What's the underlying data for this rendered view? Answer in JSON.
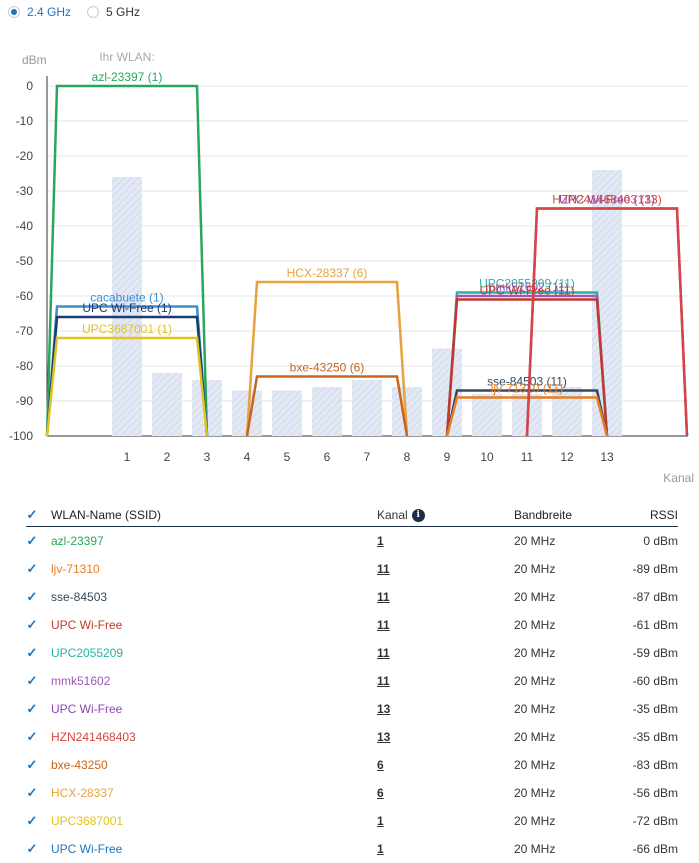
{
  "band_selector": {
    "options": [
      {
        "label": "2.4 GHz",
        "selected": true
      },
      {
        "label": "5 GHz",
        "selected": false
      }
    ]
  },
  "chart_data": {
    "type": "line",
    "title": "Ihr WLAN:",
    "ylabel": "dBm",
    "xlabel": "Kanal",
    "ylim": [
      -100,
      0
    ],
    "yticks": [
      0,
      -10,
      -20,
      -30,
      -40,
      -50,
      -60,
      -70,
      -80,
      -90,
      -100
    ],
    "xticks": [
      1,
      2,
      3,
      4,
      5,
      6,
      7,
      8,
      9,
      10,
      11,
      12,
      13
    ],
    "background_bars": [
      {
        "channel": 1,
        "value": -26
      },
      {
        "channel": 2,
        "value": -82
      },
      {
        "channel": 3,
        "value": -84
      },
      {
        "channel": 4,
        "value": -87
      },
      {
        "channel": 5,
        "value": -87
      },
      {
        "channel": 6,
        "value": -86
      },
      {
        "channel": 7,
        "value": -84
      },
      {
        "channel": 8,
        "value": -86
      },
      {
        "channel": 9,
        "value": -75
      },
      {
        "channel": 10,
        "value": -88
      },
      {
        "channel": 11,
        "value": -88
      },
      {
        "channel": 12,
        "value": -86
      },
      {
        "channel": 13,
        "value": -24
      }
    ],
    "series": [
      {
        "name": "azl-23397",
        "label": "azl-23397 (1)",
        "channel": 1,
        "rssi": 0,
        "color": "#2aa65a"
      },
      {
        "name": "cacabuete",
        "label": "cacabuete (1)",
        "channel": 1,
        "rssi": -63,
        "color": "#3a8fcf"
      },
      {
        "name": "UPC Wi-Free",
        "label": "UPC Wi-Free (1)",
        "channel": 1,
        "rssi": -66,
        "color": "#1c3c6e"
      },
      {
        "name": "UPC3687001",
        "label": "UPC3687001 (1)",
        "channel": 1,
        "rssi": -72,
        "color": "#e2c21c"
      },
      {
        "name": "HCX-28337",
        "label": "HCX-28337 (6)",
        "channel": 6,
        "rssi": -56,
        "color": "#e8a23a"
      },
      {
        "name": "bxe-43250",
        "label": "bxe-43250 (6)",
        "channel": 6,
        "rssi": -83,
        "color": "#c8641e"
      },
      {
        "name": "UPC2055209",
        "label": "UPC2055209 (11)",
        "channel": 11,
        "rssi": -59,
        "color": "#26b3a6"
      },
      {
        "name": "mmk51602",
        "label": "mmk51602 (11)",
        "channel": 11,
        "rssi": -60,
        "color": "#9b59b6"
      },
      {
        "name": "UPC Wi-Free",
        "label": "UPC Wi-Free (11)",
        "channel": 11,
        "rssi": -61,
        "color": "#c0392b"
      },
      {
        "name": "sse-84503",
        "label": "sse-84503 (11)",
        "channel": 11,
        "rssi": -87,
        "color": "#34495e"
      },
      {
        "name": "ljv-71310",
        "label": "ljv-71310 (11)",
        "channel": 11,
        "rssi": -89,
        "color": "#e67e22"
      },
      {
        "name": "UPC Wi-Free",
        "label": "UPC Wi-Free (13)",
        "channel": 13,
        "rssi": -35,
        "color": "#8e44ad"
      },
      {
        "name": "HZN241468403",
        "label": "HZN241468403 (13)",
        "channel": 13,
        "rssi": -35,
        "color": "#d64545"
      }
    ]
  },
  "table": {
    "headers": {
      "name": "WLAN-Name (SSID)",
      "channel": "Kanal",
      "bandwidth": "Bandbreite",
      "rssi": "RSSI"
    },
    "rows": [
      {
        "name": "azl-23397",
        "channel": "1",
        "bandwidth": "20 MHz",
        "rssi": "0 dBm",
        "color": "#2aa65a"
      },
      {
        "name": "ljv-71310",
        "channel": "11",
        "bandwidth": "20 MHz",
        "rssi": "-89 dBm",
        "color": "#e67e22"
      },
      {
        "name": "sse-84503",
        "channel": "11",
        "bandwidth": "20 MHz",
        "rssi": "-87 dBm",
        "color": "#34495e"
      },
      {
        "name": "UPC Wi-Free",
        "channel": "11",
        "bandwidth": "20 MHz",
        "rssi": "-61 dBm",
        "color": "#c0392b"
      },
      {
        "name": "UPC2055209",
        "channel": "11",
        "bandwidth": "20 MHz",
        "rssi": "-59 dBm",
        "color": "#26b3a6"
      },
      {
        "name": "mmk51602",
        "channel": "11",
        "bandwidth": "20 MHz",
        "rssi": "-60 dBm",
        "color": "#9b59b6"
      },
      {
        "name": "UPC Wi-Free",
        "channel": "13",
        "bandwidth": "20 MHz",
        "rssi": "-35 dBm",
        "color": "#8e44ad"
      },
      {
        "name": "HZN241468403",
        "channel": "13",
        "bandwidth": "20 MHz",
        "rssi": "-35 dBm",
        "color": "#d64545"
      },
      {
        "name": "bxe-43250",
        "channel": "6",
        "bandwidth": "20 MHz",
        "rssi": "-83 dBm",
        "color": "#c8641e"
      },
      {
        "name": "HCX-28337",
        "channel": "6",
        "bandwidth": "20 MHz",
        "rssi": "-56 dBm",
        "color": "#e8a23a"
      },
      {
        "name": "UPC3687001",
        "channel": "1",
        "bandwidth": "20 MHz",
        "rssi": "-72 dBm",
        "color": "#e2c21c"
      },
      {
        "name": "UPC Wi-Free",
        "channel": "1",
        "bandwidth": "20 MHz",
        "rssi": "-66 dBm",
        "color": "#1e73be"
      }
    ]
  }
}
